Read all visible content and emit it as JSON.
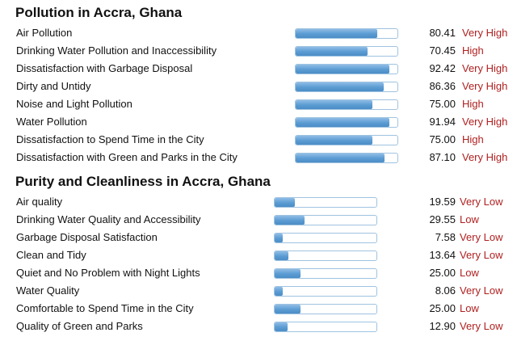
{
  "pollution": {
    "title": "Pollution in Accra, Ghana",
    "rows": [
      {
        "label": "Air Pollution",
        "value": "80.41",
        "level": "Very High",
        "fill_percent": 80.41
      },
      {
        "label": "Drinking Water Pollution and Inaccessibility",
        "value": "70.45",
        "level": "High",
        "fill_percent": 70.45
      },
      {
        "label": "Dissatisfaction with Garbage Disposal",
        "value": "92.42",
        "level": "Very High",
        "fill_percent": 92.42
      },
      {
        "label": "Dirty and Untidy",
        "value": "86.36",
        "level": "Very High",
        "fill_percent": 86.36
      },
      {
        "label": "Noise and Light Pollution",
        "value": "75.00",
        "level": "High",
        "fill_percent": 75.0
      },
      {
        "label": "Water Pollution",
        "value": "91.94",
        "level": "Very High",
        "fill_percent": 91.94
      },
      {
        "label": "Dissatisfaction to Spend Time in the City",
        "value": "75.00",
        "level": "High",
        "fill_percent": 75.0
      },
      {
        "label": "Dissatisfaction with Green and Parks in the City",
        "value": "87.10",
        "level": "Very High",
        "fill_percent": 87.1
      }
    ]
  },
  "purity": {
    "title": "Purity and Cleanliness in Accra, Ghana",
    "rows": [
      {
        "label": "Air quality",
        "value": "19.59",
        "level": "Very Low",
        "fill_percent": 19.59
      },
      {
        "label": "Drinking Water Quality and Accessibility",
        "value": "29.55",
        "level": "Low",
        "fill_percent": 29.55
      },
      {
        "label": "Garbage Disposal Satisfaction",
        "value": "7.58",
        "level": "Very Low",
        "fill_percent": 7.58
      },
      {
        "label": "Clean and Tidy",
        "value": "13.64",
        "level": "Very Low",
        "fill_percent": 13.64
      },
      {
        "label": "Quiet and No Problem with Night Lights",
        "value": "25.00",
        "level": "Low",
        "fill_percent": 25.0
      },
      {
        "label": "Water Quality",
        "value": "8.06",
        "level": "Very Low",
        "fill_percent": 8.06
      },
      {
        "label": "Comfortable to Spend Time in the City",
        "value": "25.00",
        "level": "Low",
        "fill_percent": 25.0
      },
      {
        "label": "Quality of Green and Parks",
        "value": "12.90",
        "level": "Very Low",
        "fill_percent": 12.9
      }
    ]
  },
  "colors": {
    "bar_fill": "#5a9bd2",
    "bar_border": "#9fc3e0",
    "level_text": "#b02020",
    "text": "#111111"
  }
}
